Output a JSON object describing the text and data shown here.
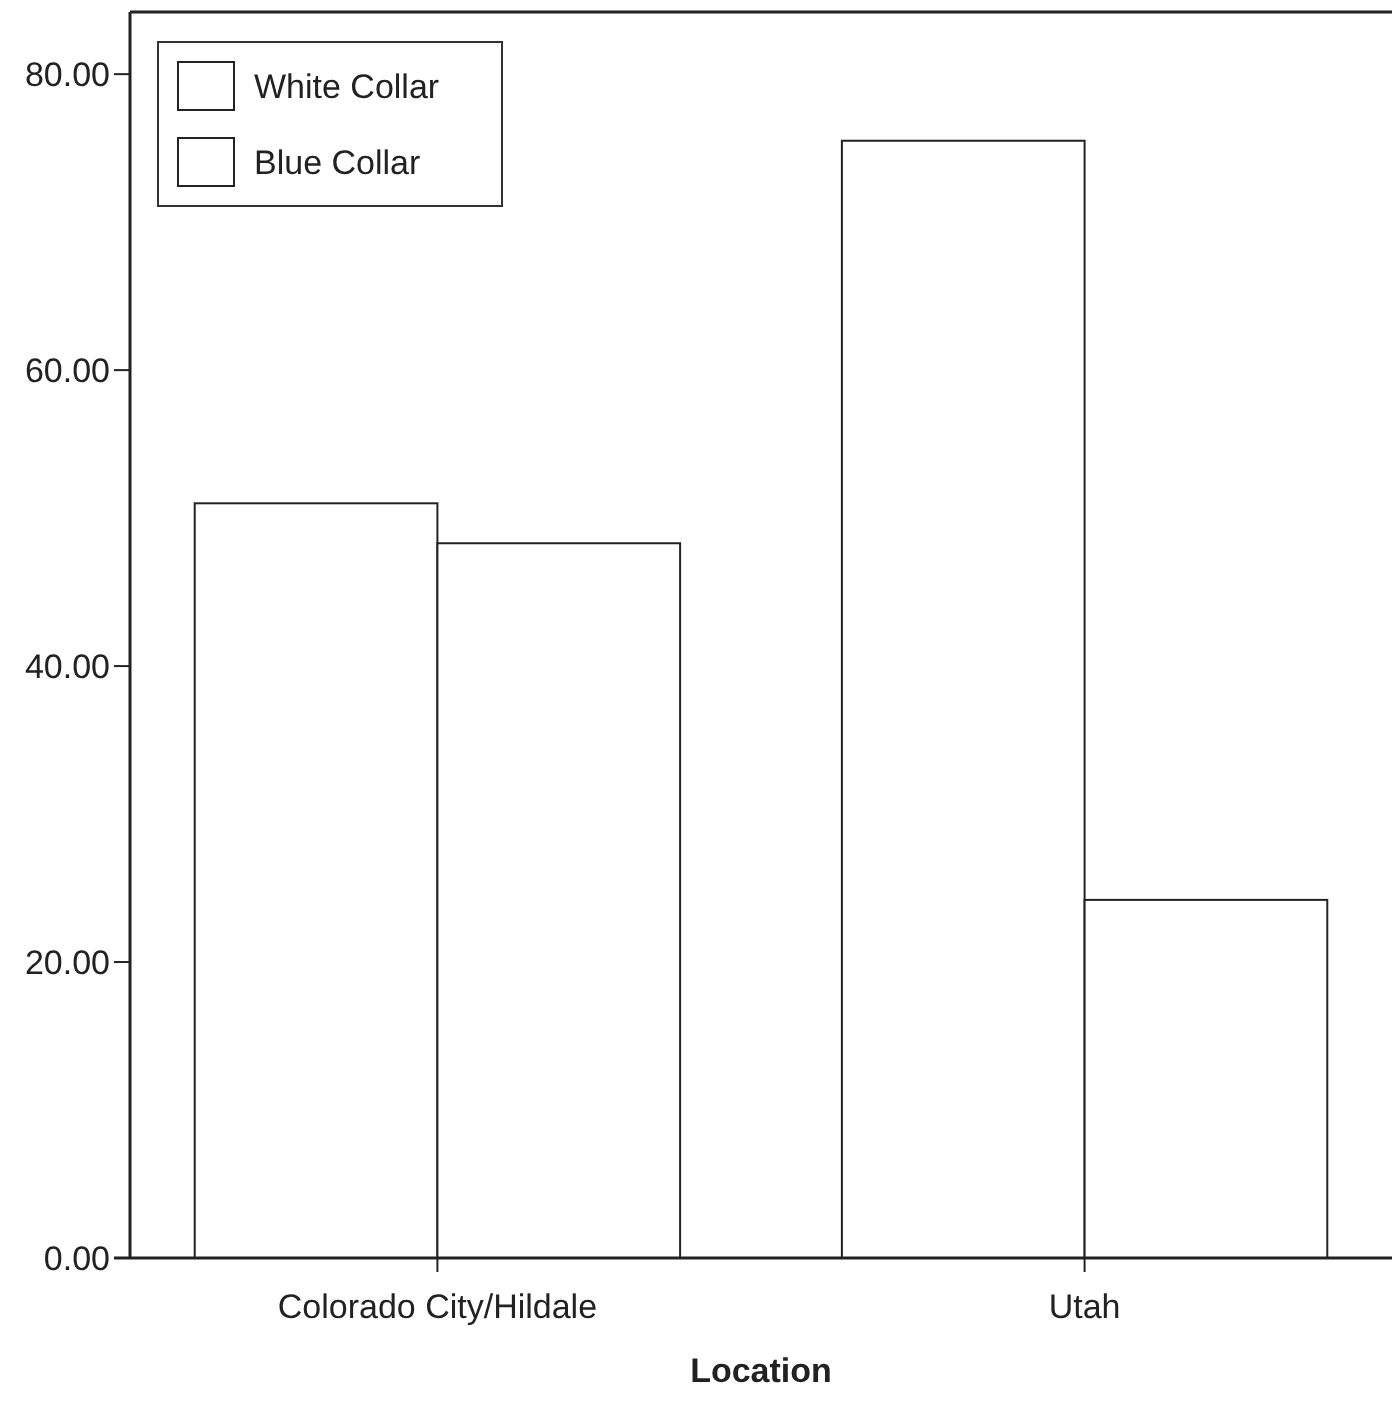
{
  "chart_data": {
    "type": "bar",
    "xlabel": "Location",
    "categories": [
      "Colorado City/Hildale",
      "Utah"
    ],
    "series": [
      {
        "name": "White Collar",
        "color": "#ffffff",
        "values": [
          51.0,
          75.5
        ]
      },
      {
        "name": "Blue Collar",
        "color": "#ffffff",
        "values": [
          48.3,
          24.2
        ]
      }
    ],
    "ylim": [
      0,
      84.2
    ],
    "yticks": [
      {
        "value": 0,
        "label": "0.00"
      },
      {
        "value": 20,
        "label": "20.00"
      },
      {
        "value": 40,
        "label": "40.00"
      },
      {
        "value": 60,
        "label": "60.00"
      },
      {
        "value": 80,
        "label": "80.00"
      }
    ],
    "legend": "top left",
    "grid": false
  }
}
